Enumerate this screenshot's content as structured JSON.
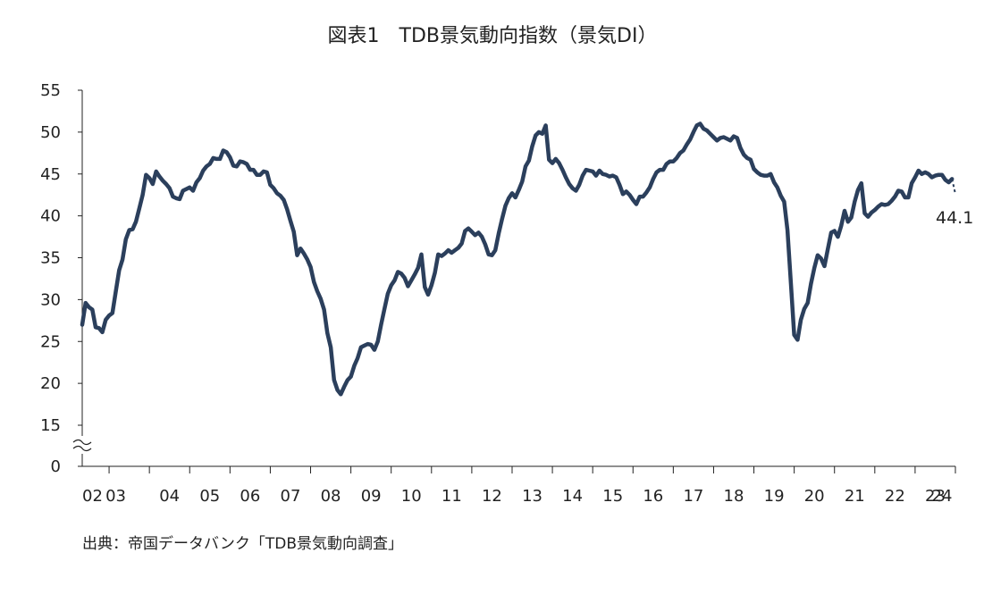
{
  "chart_data": {
    "type": "line",
    "title": "図表1　TDB景気動向指数（景気DI）",
    "source": "出典：帝国データバンク「TDB景気動向調査」",
    "end_label": "44.1",
    "y_ticks": [
      0,
      15,
      20,
      25,
      30,
      35,
      40,
      45,
      50,
      55
    ],
    "axis_break": true,
    "ylim": [
      15,
      55
    ],
    "x_tick_labels": [
      "02",
      "03",
      "04",
      "05",
      "06",
      "07",
      "08",
      "09",
      "10",
      "11",
      "12",
      "13",
      "14",
      "15",
      "16",
      "17",
      "18",
      "19",
      "20",
      "21",
      "22",
      "23",
      "24"
    ],
    "line_color": "#2b3f5c",
    "grid": false,
    "series": [
      {
        "start": "2002-05",
        "values": [
          27.0,
          29.6,
          29.1,
          28.8,
          26.7,
          26.6,
          26.1,
          27.6,
          28.1,
          28.4,
          31.0,
          33.5,
          34.8,
          37.2,
          38.3,
          38.4,
          39.3,
          40.9,
          42.5,
          44.9,
          44.5,
          43.8,
          45.3,
          44.7,
          44.2,
          43.8,
          43.3,
          42.3,
          42.1,
          42.0,
          43.0,
          43.2,
          43.4,
          43.0,
          44.0,
          44.5,
          45.4,
          45.9,
          46.2,
          46.9,
          46.8,
          46.8,
          47.8,
          47.6,
          47.0,
          46.0,
          45.9,
          46.5,
          46.4,
          46.2,
          45.5,
          45.5,
          44.9,
          44.9,
          45.3,
          45.2,
          43.7,
          43.3,
          42.7,
          42.4,
          41.9,
          40.8,
          39.4,
          38.1,
          35.3,
          36.1,
          35.5,
          34.8,
          33.9,
          32.1,
          31.0,
          30.1,
          28.8,
          26.0,
          24.3,
          20.4,
          19.2,
          18.7,
          19.6,
          20.4,
          20.8,
          22.1,
          23.0,
          24.3,
          24.5,
          24.7,
          24.6,
          24.0,
          25.0,
          27.0,
          28.9,
          30.7,
          31.7,
          32.3,
          33.3,
          33.1,
          32.6,
          31.6,
          32.3,
          33.0,
          33.8,
          35.4,
          31.5,
          30.6,
          31.7,
          33.2,
          35.4,
          35.2,
          35.5,
          35.9,
          35.6,
          35.9,
          36.2,
          36.7,
          38.2,
          38.5,
          38.1,
          37.7,
          38.0,
          37.5,
          36.6,
          35.4,
          35.3,
          35.9,
          37.9,
          39.6,
          41.2,
          42.1,
          42.7,
          42.2,
          43.1,
          44.1,
          45.9,
          46.6,
          48.3,
          49.6,
          50.0,
          49.8,
          50.8,
          46.7,
          46.3,
          46.8,
          46.3,
          45.5,
          44.6,
          43.8,
          43.3,
          43.0,
          43.7,
          44.8,
          45.5,
          45.4,
          45.3,
          44.8,
          45.4,
          45.0,
          44.9,
          44.7,
          44.8,
          44.6,
          43.7,
          42.6,
          42.9,
          42.5,
          41.9,
          41.4,
          42.3,
          42.3,
          42.8,
          43.4,
          44.4,
          45.2,
          45.5,
          45.5,
          46.2,
          46.5,
          46.5,
          46.9,
          47.5,
          47.8,
          48.5,
          49.1,
          50.0,
          50.8,
          51.0,
          50.4,
          50.2,
          49.8,
          49.4,
          49.0,
          49.3,
          49.4,
          49.2,
          49.0,
          49.5,
          49.3,
          48.1,
          47.3,
          46.9,
          46.7,
          45.6,
          45.2,
          44.9,
          44.8,
          44.8,
          45.0,
          44.0,
          43.4,
          42.4,
          41.7,
          38.3,
          32.0,
          25.8,
          25.2,
          27.6,
          28.9,
          29.6,
          31.9,
          33.8,
          35.3,
          34.9,
          34.0,
          36.0,
          38.0,
          38.2,
          37.5,
          38.8,
          40.6,
          39.3,
          39.8,
          41.7,
          43.1,
          43.9,
          40.3,
          39.9,
          40.4,
          40.7,
          41.1,
          41.4,
          41.3,
          41.4,
          41.8,
          42.3,
          43.0,
          42.9,
          42.2,
          42.2,
          43.9,
          44.6,
          45.4,
          45.0,
          45.2,
          45.0,
          44.6,
          44.8,
          44.9,
          44.9,
          44.3,
          44.0,
          44.4,
          44.1
        ]
      }
    ],
    "last_segment_dashed": true
  }
}
